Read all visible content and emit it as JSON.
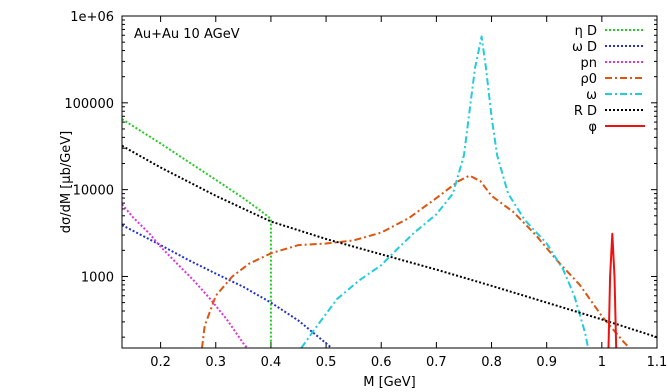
{
  "chart_data": {
    "type": "line",
    "annotation": "Au+Au 10 AGeV",
    "xlabel": "M [GeV]",
    "ylabel": "dσ/dM [μb/GeV]",
    "xlim": [
      0.13,
      1.1
    ],
    "ylim": [
      150,
      1000000
    ],
    "y_scale": "log",
    "grid": false,
    "legend_position": "top-right",
    "x_ticks": [
      {
        "value": 0.2,
        "label": "0.2"
      },
      {
        "value": 0.3,
        "label": "0.3"
      },
      {
        "value": 0.4,
        "label": "0.4"
      },
      {
        "value": 0.5,
        "label": "0.5"
      },
      {
        "value": 0.6,
        "label": "0.6"
      },
      {
        "value": 0.7,
        "label": "0.7"
      },
      {
        "value": 0.8,
        "label": "0.8"
      },
      {
        "value": 0.9,
        "label": "0.9"
      },
      {
        "value": 1.0,
        "label": "1"
      },
      {
        "value": 1.1,
        "label": "1.1"
      }
    ],
    "y_ticks": [
      {
        "value": 1000,
        "label": "1000"
      },
      {
        "value": 10000,
        "label": "10000"
      },
      {
        "value": 100000,
        "label": "100000"
      },
      {
        "value": 1000000,
        "label": "1e+06"
      }
    ],
    "series": [
      {
        "name": "η D",
        "color": "#22cc22",
        "dash": "dotted",
        "points": [
          [
            0.13,
            65000
          ],
          [
            0.2,
            34000
          ],
          [
            0.25,
            21000
          ],
          [
            0.3,
            13000
          ],
          [
            0.35,
            8000
          ],
          [
            0.38,
            5800
          ],
          [
            0.4,
            4600
          ],
          [
            0.4,
            150
          ]
        ]
      },
      {
        "name": "ω D",
        "color": "#2233cc",
        "dash": "dotted",
        "points": [
          [
            0.13,
            3900
          ],
          [
            0.2,
            2300
          ],
          [
            0.25,
            1550
          ],
          [
            0.3,
            1080
          ],
          [
            0.35,
            760
          ],
          [
            0.4,
            500
          ],
          [
            0.45,
            310
          ],
          [
            0.5,
            170
          ],
          [
            0.51,
            150
          ]
        ]
      },
      {
        "name": "pn",
        "color": "#dd33dd",
        "dash": "dotted",
        "points": [
          [
            0.13,
            6800
          ],
          [
            0.15,
            4800
          ],
          [
            0.18,
            3100
          ],
          [
            0.2,
            2200
          ],
          [
            0.23,
            1400
          ],
          [
            0.26,
            900
          ],
          [
            0.29,
            550
          ],
          [
            0.32,
            320
          ],
          [
            0.35,
            170
          ],
          [
            0.357,
            150
          ]
        ]
      },
      {
        "name": "ρ0",
        "color": "#dd5511",
        "dash": "dashdot",
        "points": [
          [
            0.275,
            150
          ],
          [
            0.28,
            270
          ],
          [
            0.3,
            600
          ],
          [
            0.33,
            1000
          ],
          [
            0.36,
            1400
          ],
          [
            0.4,
            1850
          ],
          [
            0.45,
            2300
          ],
          [
            0.5,
            2400
          ],
          [
            0.55,
            2600
          ],
          [
            0.6,
            3200
          ],
          [
            0.65,
            4700
          ],
          [
            0.7,
            8000
          ],
          [
            0.74,
            12500
          ],
          [
            0.76,
            14500
          ],
          [
            0.78,
            12500
          ],
          [
            0.8,
            8500
          ],
          [
            0.84,
            5500
          ],
          [
            0.88,
            3000
          ],
          [
            0.92,
            1500
          ],
          [
            0.96,
            800
          ],
          [
            1.0,
            350
          ],
          [
            1.04,
            175
          ],
          [
            1.05,
            150
          ]
        ]
      },
      {
        "name": "ω",
        "color": "#22ccdd",
        "dash": "dashdot",
        "points": [
          [
            0.455,
            150
          ],
          [
            0.48,
            250
          ],
          [
            0.52,
            550
          ],
          [
            0.56,
            900
          ],
          [
            0.6,
            1350
          ],
          [
            0.63,
            2100
          ],
          [
            0.66,
            3200
          ],
          [
            0.7,
            5200
          ],
          [
            0.73,
            9000
          ],
          [
            0.75,
            25000
          ],
          [
            0.76,
            80000
          ],
          [
            0.77,
            250000
          ],
          [
            0.782,
            580000
          ],
          [
            0.79,
            250000
          ],
          [
            0.8,
            70000
          ],
          [
            0.81,
            25000
          ],
          [
            0.83,
            9000
          ],
          [
            0.86,
            4500
          ],
          [
            0.9,
            2400
          ],
          [
            0.93,
            1200
          ],
          [
            0.95,
            600
          ],
          [
            0.97,
            220
          ],
          [
            0.975,
            150
          ]
        ]
      },
      {
        "name": "R D",
        "color": "#000000",
        "dash": "dotted",
        "points": [
          [
            0.13,
            32000
          ],
          [
            0.2,
            18000
          ],
          [
            0.3,
            8500
          ],
          [
            0.4,
            4300
          ],
          [
            0.5,
            2700
          ],
          [
            0.6,
            1800
          ],
          [
            0.7,
            1200
          ],
          [
            0.8,
            780
          ],
          [
            0.9,
            500
          ],
          [
            1.0,
            320
          ],
          [
            1.1,
            200
          ]
        ]
      },
      {
        "name": "φ",
        "color": "#ee1111",
        "dash": "solid",
        "points": [
          [
            1.012,
            150
          ],
          [
            1.015,
            1000
          ],
          [
            1.019,
            3100
          ],
          [
            1.023,
            1000
          ],
          [
            1.026,
            150
          ]
        ]
      }
    ]
  }
}
